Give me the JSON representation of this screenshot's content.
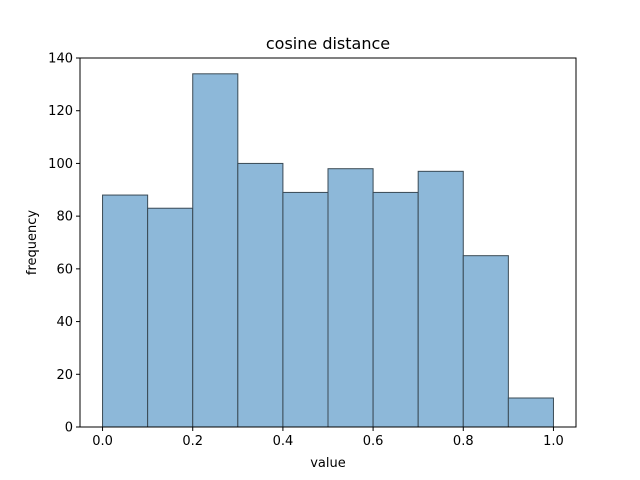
{
  "chart_data": {
    "type": "bar",
    "title": "cosine distance",
    "xlabel": "value",
    "ylabel": "frequency",
    "bin_edges": [
      0.0,
      0.1,
      0.2,
      0.3,
      0.4,
      0.5,
      0.6,
      0.7,
      0.8,
      0.9,
      1.0
    ],
    "values": [
      88,
      83,
      134,
      100,
      89,
      98,
      89,
      97,
      65,
      11
    ],
    "xlim": [
      -0.05,
      1.05
    ],
    "ylim": [
      0,
      140
    ],
    "xticks": [
      0.0,
      0.2,
      0.4,
      0.6,
      0.8,
      1.0
    ],
    "xtick_labels": [
      "0.0",
      "0.2",
      "0.4",
      "0.6",
      "0.8",
      "1.0"
    ],
    "yticks": [
      0,
      20,
      40,
      60,
      80,
      100,
      120,
      140
    ],
    "ytick_labels": [
      "0",
      "20",
      "40",
      "60",
      "80",
      "100",
      "120",
      "140"
    ],
    "bar_color": "#8db8d9",
    "bar_edge_color": "#3a4a55",
    "grid": false,
    "legend": "none"
  }
}
